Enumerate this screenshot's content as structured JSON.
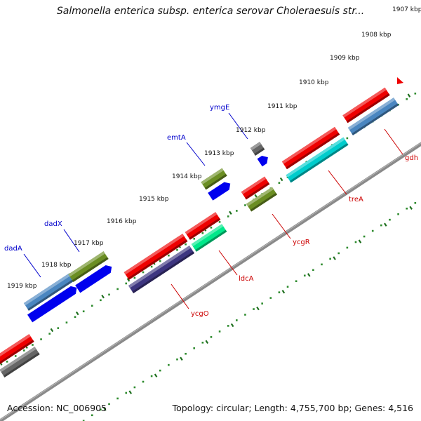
{
  "title": "Salmonella enterica subsp. enterica serovar Choleraesuis str...",
  "footer": {
    "accession": "Accession: NC_006905",
    "summary": "Topology: circular; Length: 4,755,700 bp; Genes: 4,516"
  },
  "colors": {
    "backbone": "#8a8a8a",
    "ruler_dots": "#2e8b2e",
    "ruler_ticks": "#1f6f1f",
    "upper_labels": "#0000cc",
    "lower_labels": "#cc0000"
  },
  "ruler_labels": [
    "1907 kbp",
    "1908 kbp",
    "1909 kbp",
    "1910 kbp",
    "1911 kbp",
    "1912 kbp",
    "1913 kbp",
    "1914 kbp",
    "1915 kbp",
    "1916 kbp",
    "1917 kbp",
    "1918 kbp",
    "1919 kbp"
  ],
  "genes_upper": [
    {
      "name": "dadA",
      "color": "#4a86c0"
    },
    {
      "name": "dadX",
      "color": "#6b8e23"
    },
    {
      "name": "emtA",
      "color": "#6b8e23"
    },
    {
      "name": "ymgE",
      "color": "#666666"
    }
  ],
  "genes_lower": [
    {
      "name": "ycgO",
      "color": "#3d3580"
    },
    {
      "name": "ldcA",
      "color": "#00e88a"
    },
    {
      "name": "ycgR",
      "color": "#6b8e23"
    },
    {
      "name": "treA",
      "color": "#00cccc"
    },
    {
      "name": "gdh",
      "color": "#4a86c0"
    }
  ]
}
